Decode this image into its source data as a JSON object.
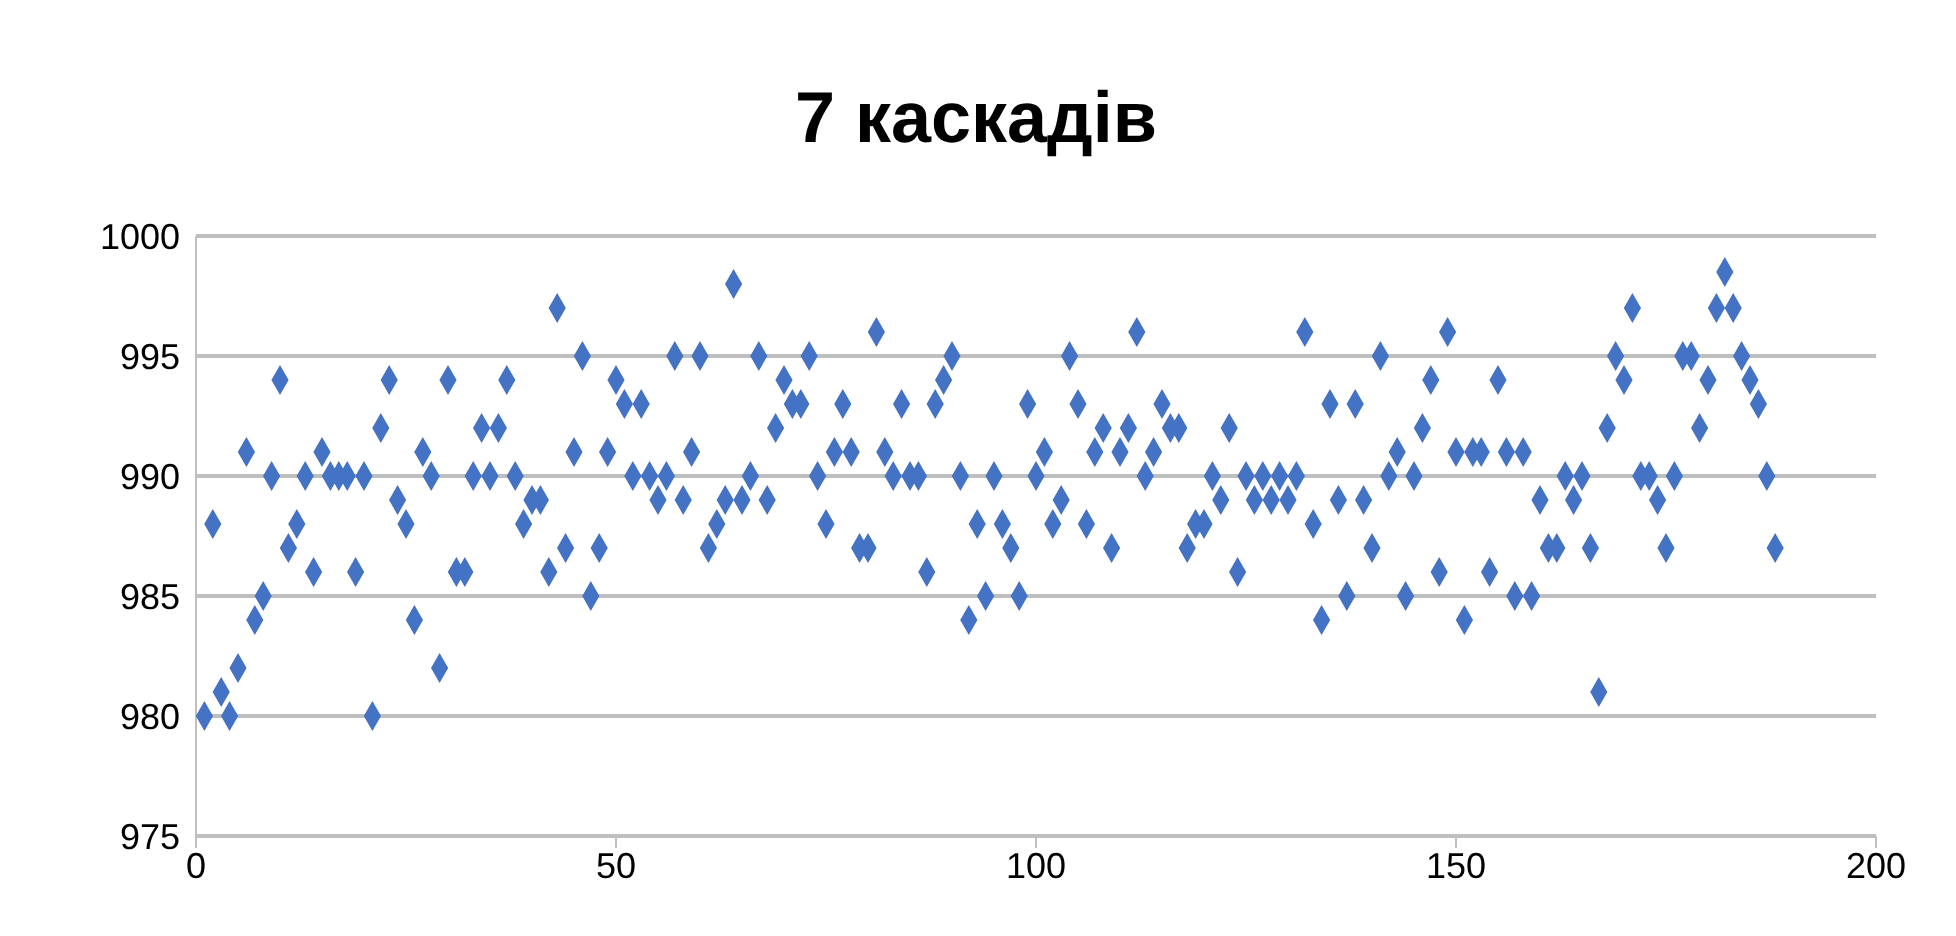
{
  "chart_data": {
    "type": "scatter",
    "title": "7 каскадів",
    "x": [
      1,
      2,
      3,
      4,
      5,
      6,
      7,
      8,
      9,
      10,
      11,
      12,
      13,
      14,
      15,
      16,
      17,
      18,
      19,
      20,
      21,
      22,
      23,
      24,
      25,
      26,
      27,
      28,
      29,
      30,
      31,
      32,
      33,
      34,
      35,
      36,
      37,
      38,
      39,
      40,
      41,
      42,
      43,
      44,
      45,
      46,
      47,
      48,
      49,
      50,
      51,
      52,
      53,
      54,
      55,
      56,
      57,
      58,
      59,
      60,
      61,
      62,
      63,
      64,
      65,
      66,
      67,
      68,
      69,
      70,
      71,
      72,
      73,
      74,
      75,
      76,
      77,
      78,
      79,
      80,
      81,
      82,
      83,
      84,
      85,
      86,
      87,
      88,
      89,
      90,
      91,
      92,
      93,
      94,
      95,
      96,
      97,
      98,
      99,
      100,
      101,
      102,
      103,
      104,
      105,
      106,
      107,
      108,
      109,
      110,
      111,
      112,
      113,
      114,
      115,
      116,
      117,
      118,
      119,
      120,
      121,
      122,
      123,
      124,
      125,
      126,
      127,
      128,
      129,
      130,
      131,
      132,
      133,
      134,
      135,
      136,
      137,
      138,
      139,
      140,
      141,
      142,
      143,
      144,
      145,
      146,
      147,
      148,
      149,
      150,
      151,
      152,
      153,
      154,
      155,
      156,
      157,
      158,
      159,
      160,
      161,
      162,
      163,
      164,
      165,
      166,
      167,
      168,
      169,
      170,
      171,
      172,
      173,
      174,
      175,
      176,
      177,
      178,
      179,
      180,
      181,
      182,
      183,
      184,
      185,
      186,
      187,
      188
    ],
    "values": [
      980,
      988,
      981,
      980,
      982,
      991,
      984,
      985,
      990,
      994,
      987,
      988,
      990,
      986,
      991,
      990,
      990,
      990,
      986,
      990,
      980,
      992,
      994,
      989,
      988,
      984,
      991,
      990,
      982,
      994,
      986,
      986,
      990,
      992,
      990,
      992,
      994,
      990,
      988,
      989,
      989,
      986,
      997,
      987,
      991,
      995,
      985,
      987,
      991,
      994,
      993,
      990,
      993,
      990,
      989,
      990,
      995,
      989,
      991,
      995,
      987,
      988,
      989,
      998,
      989,
      990,
      995,
      989,
      992,
      994,
      993,
      993,
      995,
      990,
      988,
      991,
      993,
      991,
      987,
      987,
      996,
      991,
      990,
      993,
      990,
      990,
      986,
      993,
      994,
      995,
      990,
      984,
      988,
      985,
      990,
      988,
      987,
      985,
      993,
      990,
      991,
      988,
      989,
      995,
      993,
      988,
      991,
      992,
      987,
      991,
      992,
      996,
      990,
      991,
      993,
      992,
      992,
      987,
      988,
      988,
      990,
      989,
      992,
      986,
      990,
      989,
      990,
      989,
      990,
      989,
      990,
      996,
      988,
      984,
      993,
      989,
      985,
      993,
      989,
      987,
      995,
      990,
      991,
      985,
      990,
      992,
      994,
      986,
      996,
      991,
      984,
      991,
      991,
      986,
      994,
      991,
      985,
      991,
      985,
      989,
      987,
      987,
      990,
      989,
      990,
      987,
      981,
      992,
      995,
      994,
      997,
      990,
      990,
      989,
      987,
      990,
      995,
      995,
      992,
      994,
      997,
      998.5,
      997,
      995,
      994,
      993,
      990,
      987
    ],
    "color": "#4472c4",
    "marker": "diamond",
    "xlim": [
      0,
      200
    ],
    "xticks": [
      0,
      50,
      100,
      150,
      200
    ],
    "ylim": [
      975,
      1000
    ],
    "yticks": [
      975,
      980,
      985,
      990,
      995,
      1000
    ],
    "grid": "y"
  }
}
